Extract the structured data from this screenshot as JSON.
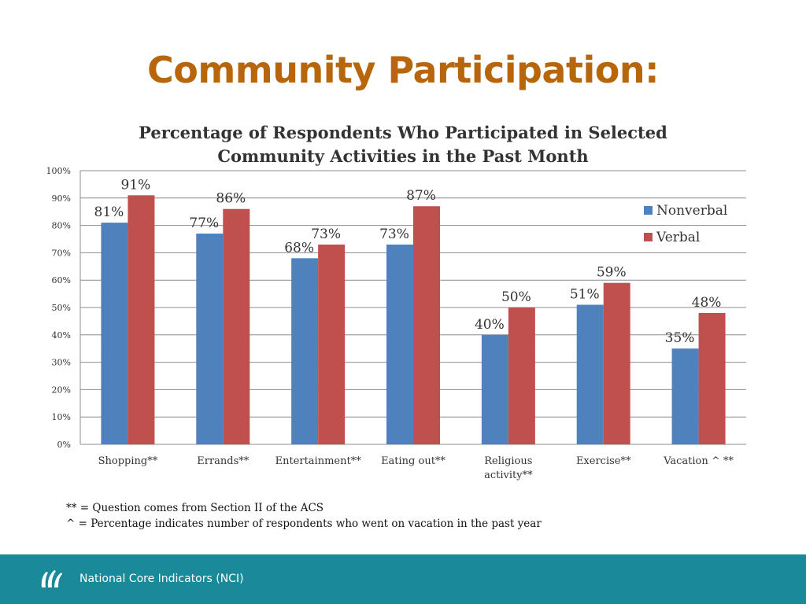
{
  "page": {
    "title": "Community Participation:"
  },
  "chart_data": {
    "type": "bar",
    "title_lines": [
      "Percentage of Respondents Who Participated in Selected",
      "Community Activities in the Past Month"
    ],
    "categories": [
      [
        "Shopping**"
      ],
      [
        "Errands**"
      ],
      [
        "Entertainment**"
      ],
      [
        "Eating out**"
      ],
      [
        "Religious",
        "activity**"
      ],
      [
        "Exercise**"
      ],
      [
        "Vacation ^ **"
      ]
    ],
    "series": [
      {
        "name": "Nonverbal",
        "color": "#4f81bd",
        "values": [
          81,
          77,
          68,
          73,
          40,
          51,
          35
        ],
        "labels": [
          "81%",
          "77%",
          "68%",
          "73%",
          "40%",
          "51%",
          "35%"
        ]
      },
      {
        "name": "Verbal",
        "color": "#c0504d",
        "values": [
          91,
          86,
          73,
          87,
          50,
          59,
          48
        ],
        "labels": [
          "91%",
          "86%",
          "73%",
          "87%",
          "50%",
          "59%",
          "48%"
        ]
      }
    ],
    "ylim": [
      0,
      100
    ],
    "yticks": [
      "0%",
      "10%",
      "20%",
      "30%",
      "40%",
      "50%",
      "60%",
      "70%",
      "80%",
      "90%",
      "100%"
    ],
    "grid": true,
    "legend": "right"
  },
  "footnotes": {
    "line1": "** = Question comes from Section II of the ACS",
    "line2": "^ = Percentage indicates number of respondents who went on vacation in the past year"
  },
  "footer": {
    "text": "National Core Indicators (NCI)"
  }
}
